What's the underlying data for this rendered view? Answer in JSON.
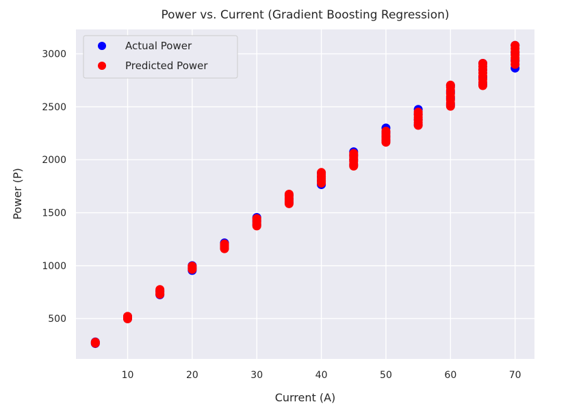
{
  "chart_data": {
    "type": "scatter",
    "title": "Power vs. Current (Gradient Boosting Regression)",
    "xlabel": "Current (A)",
    "ylabel": "Power (P)",
    "xlim": [
      2,
      73
    ],
    "ylim": [
      120,
      3230
    ],
    "xticks": [
      10,
      20,
      30,
      40,
      50,
      60,
      70
    ],
    "yticks": [
      500,
      1000,
      1500,
      2000,
      2500,
      3000
    ],
    "grid": true,
    "legend": "top-left",
    "series": [
      {
        "name": "Actual Power",
        "color": "#0000ff",
        "points": [
          [
            5,
            265
          ],
          [
            5,
            280
          ],
          [
            10,
            500
          ],
          [
            10,
            520
          ],
          [
            15,
            725
          ],
          [
            15,
            760
          ],
          [
            20,
            955
          ],
          [
            20,
            975
          ],
          [
            20,
            1000
          ],
          [
            25,
            1165
          ],
          [
            25,
            1190
          ],
          [
            25,
            1215
          ],
          [
            30,
            1385
          ],
          [
            30,
            1420
          ],
          [
            30,
            1455
          ],
          [
            35,
            1595
          ],
          [
            35,
            1630
          ],
          [
            35,
            1665
          ],
          [
            40,
            1765
          ],
          [
            40,
            1800
          ],
          [
            40,
            1840
          ],
          [
            40,
            1875
          ],
          [
            45,
            1950
          ],
          [
            45,
            2000
          ],
          [
            45,
            2040
          ],
          [
            45,
            2075
          ],
          [
            50,
            2180
          ],
          [
            50,
            2220
          ],
          [
            50,
            2260
          ],
          [
            50,
            2300
          ],
          [
            55,
            2330
          ],
          [
            55,
            2380
          ],
          [
            55,
            2430
          ],
          [
            55,
            2475
          ],
          [
            60,
            2520
          ],
          [
            60,
            2580
          ],
          [
            60,
            2640
          ],
          [
            60,
            2700
          ],
          [
            65,
            2710
          ],
          [
            65,
            2780
          ],
          [
            65,
            2850
          ],
          [
            65,
            2910
          ],
          [
            70,
            2865
          ],
          [
            70,
            2940
          ],
          [
            70,
            3010
          ],
          [
            70,
            3080
          ]
        ]
      },
      {
        "name": "Predicted Power",
        "color": "#ff0000",
        "points": [
          [
            5,
            268
          ],
          [
            5,
            278
          ],
          [
            10,
            498
          ],
          [
            10,
            510
          ],
          [
            10,
            522
          ],
          [
            15,
            730
          ],
          [
            15,
            745
          ],
          [
            15,
            760
          ],
          [
            15,
            775
          ],
          [
            20,
            965
          ],
          [
            20,
            980
          ],
          [
            20,
            995
          ],
          [
            25,
            1160
          ],
          [
            25,
            1175
          ],
          [
            25,
            1190
          ],
          [
            25,
            1205
          ],
          [
            30,
            1375
          ],
          [
            30,
            1395
          ],
          [
            30,
            1410
          ],
          [
            30,
            1430
          ],
          [
            30,
            1445
          ],
          [
            35,
            1585
          ],
          [
            35,
            1605
          ],
          [
            35,
            1620
          ],
          [
            35,
            1640
          ],
          [
            35,
            1660
          ],
          [
            35,
            1675
          ],
          [
            40,
            1780
          ],
          [
            40,
            1800
          ],
          [
            40,
            1820
          ],
          [
            40,
            1840
          ],
          [
            40,
            1860
          ],
          [
            40,
            1880
          ],
          [
            45,
            1940
          ],
          [
            45,
            1960
          ],
          [
            45,
            1985
          ],
          [
            45,
            2005
          ],
          [
            45,
            2025
          ],
          [
            45,
            2045
          ],
          [
            45,
            2060
          ],
          [
            50,
            2165
          ],
          [
            50,
            2185
          ],
          [
            50,
            2205
          ],
          [
            50,
            2225
          ],
          [
            50,
            2245
          ],
          [
            50,
            2270
          ],
          [
            55,
            2325
          ],
          [
            55,
            2350
          ],
          [
            55,
            2375
          ],
          [
            55,
            2400
          ],
          [
            55,
            2425
          ],
          [
            55,
            2450
          ],
          [
            60,
            2505
          ],
          [
            60,
            2535
          ],
          [
            60,
            2565
          ],
          [
            60,
            2595
          ],
          [
            60,
            2625
          ],
          [
            60,
            2655
          ],
          [
            60,
            2685
          ],
          [
            60,
            2705
          ],
          [
            65,
            2700
          ],
          [
            65,
            2730
          ],
          [
            65,
            2760
          ],
          [
            65,
            2790
          ],
          [
            65,
            2820
          ],
          [
            65,
            2850
          ],
          [
            65,
            2880
          ],
          [
            65,
            2910
          ],
          [
            70,
            2900
          ],
          [
            70,
            2930
          ],
          [
            70,
            2960
          ],
          [
            70,
            2990
          ],
          [
            70,
            3020
          ],
          [
            70,
            3050
          ],
          [
            70,
            3080
          ]
        ]
      }
    ]
  }
}
